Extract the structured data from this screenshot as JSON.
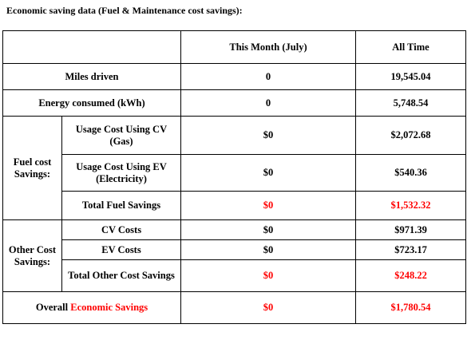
{
  "heading": "Economic saving data (Fuel & Maintenance cost savings):",
  "table": {
    "header": {
      "blank": "",
      "this_month": "This Month (July)",
      "all_time": "All Time"
    },
    "miles": {
      "label": "Miles driven",
      "this_month": "0",
      "all_time": "19,545.04"
    },
    "energy": {
      "label": "Energy consumed (kWh)",
      "this_month": "0",
      "all_time": "5,748.54"
    },
    "fuel_group": {
      "label": "Fuel cost Savings:",
      "cv_usage": {
        "label": "Usage Cost Using CV (Gas)",
        "this_month": "$0",
        "all_time": "$2,072.68"
      },
      "ev_usage": {
        "label": "Usage Cost Using EV (Electricity)",
        "this_month": "$0",
        "all_time": "$540.36"
      },
      "total": {
        "label": "Total Fuel Savings",
        "this_month": "$0",
        "all_time": "$1,532.32"
      }
    },
    "other_group": {
      "label": "Other Cost Savings:",
      "cv_costs": {
        "label": "CV Costs",
        "this_month": "$0",
        "all_time": "$971.39"
      },
      "ev_costs": {
        "label": "EV Costs",
        "this_month": "$0",
        "all_time": "$723.17"
      },
      "total": {
        "label": "Total Other Cost Savings",
        "this_month": "$0",
        "all_time": "$248.22"
      }
    },
    "overall": {
      "label_prefix": "Overall",
      "label_highlight": "Economic Savings",
      "this_month": "$0",
      "all_time": "$1,780.54"
    }
  },
  "colors": {
    "highlight": "#ff0000",
    "text": "#000000",
    "border": "#000000"
  }
}
